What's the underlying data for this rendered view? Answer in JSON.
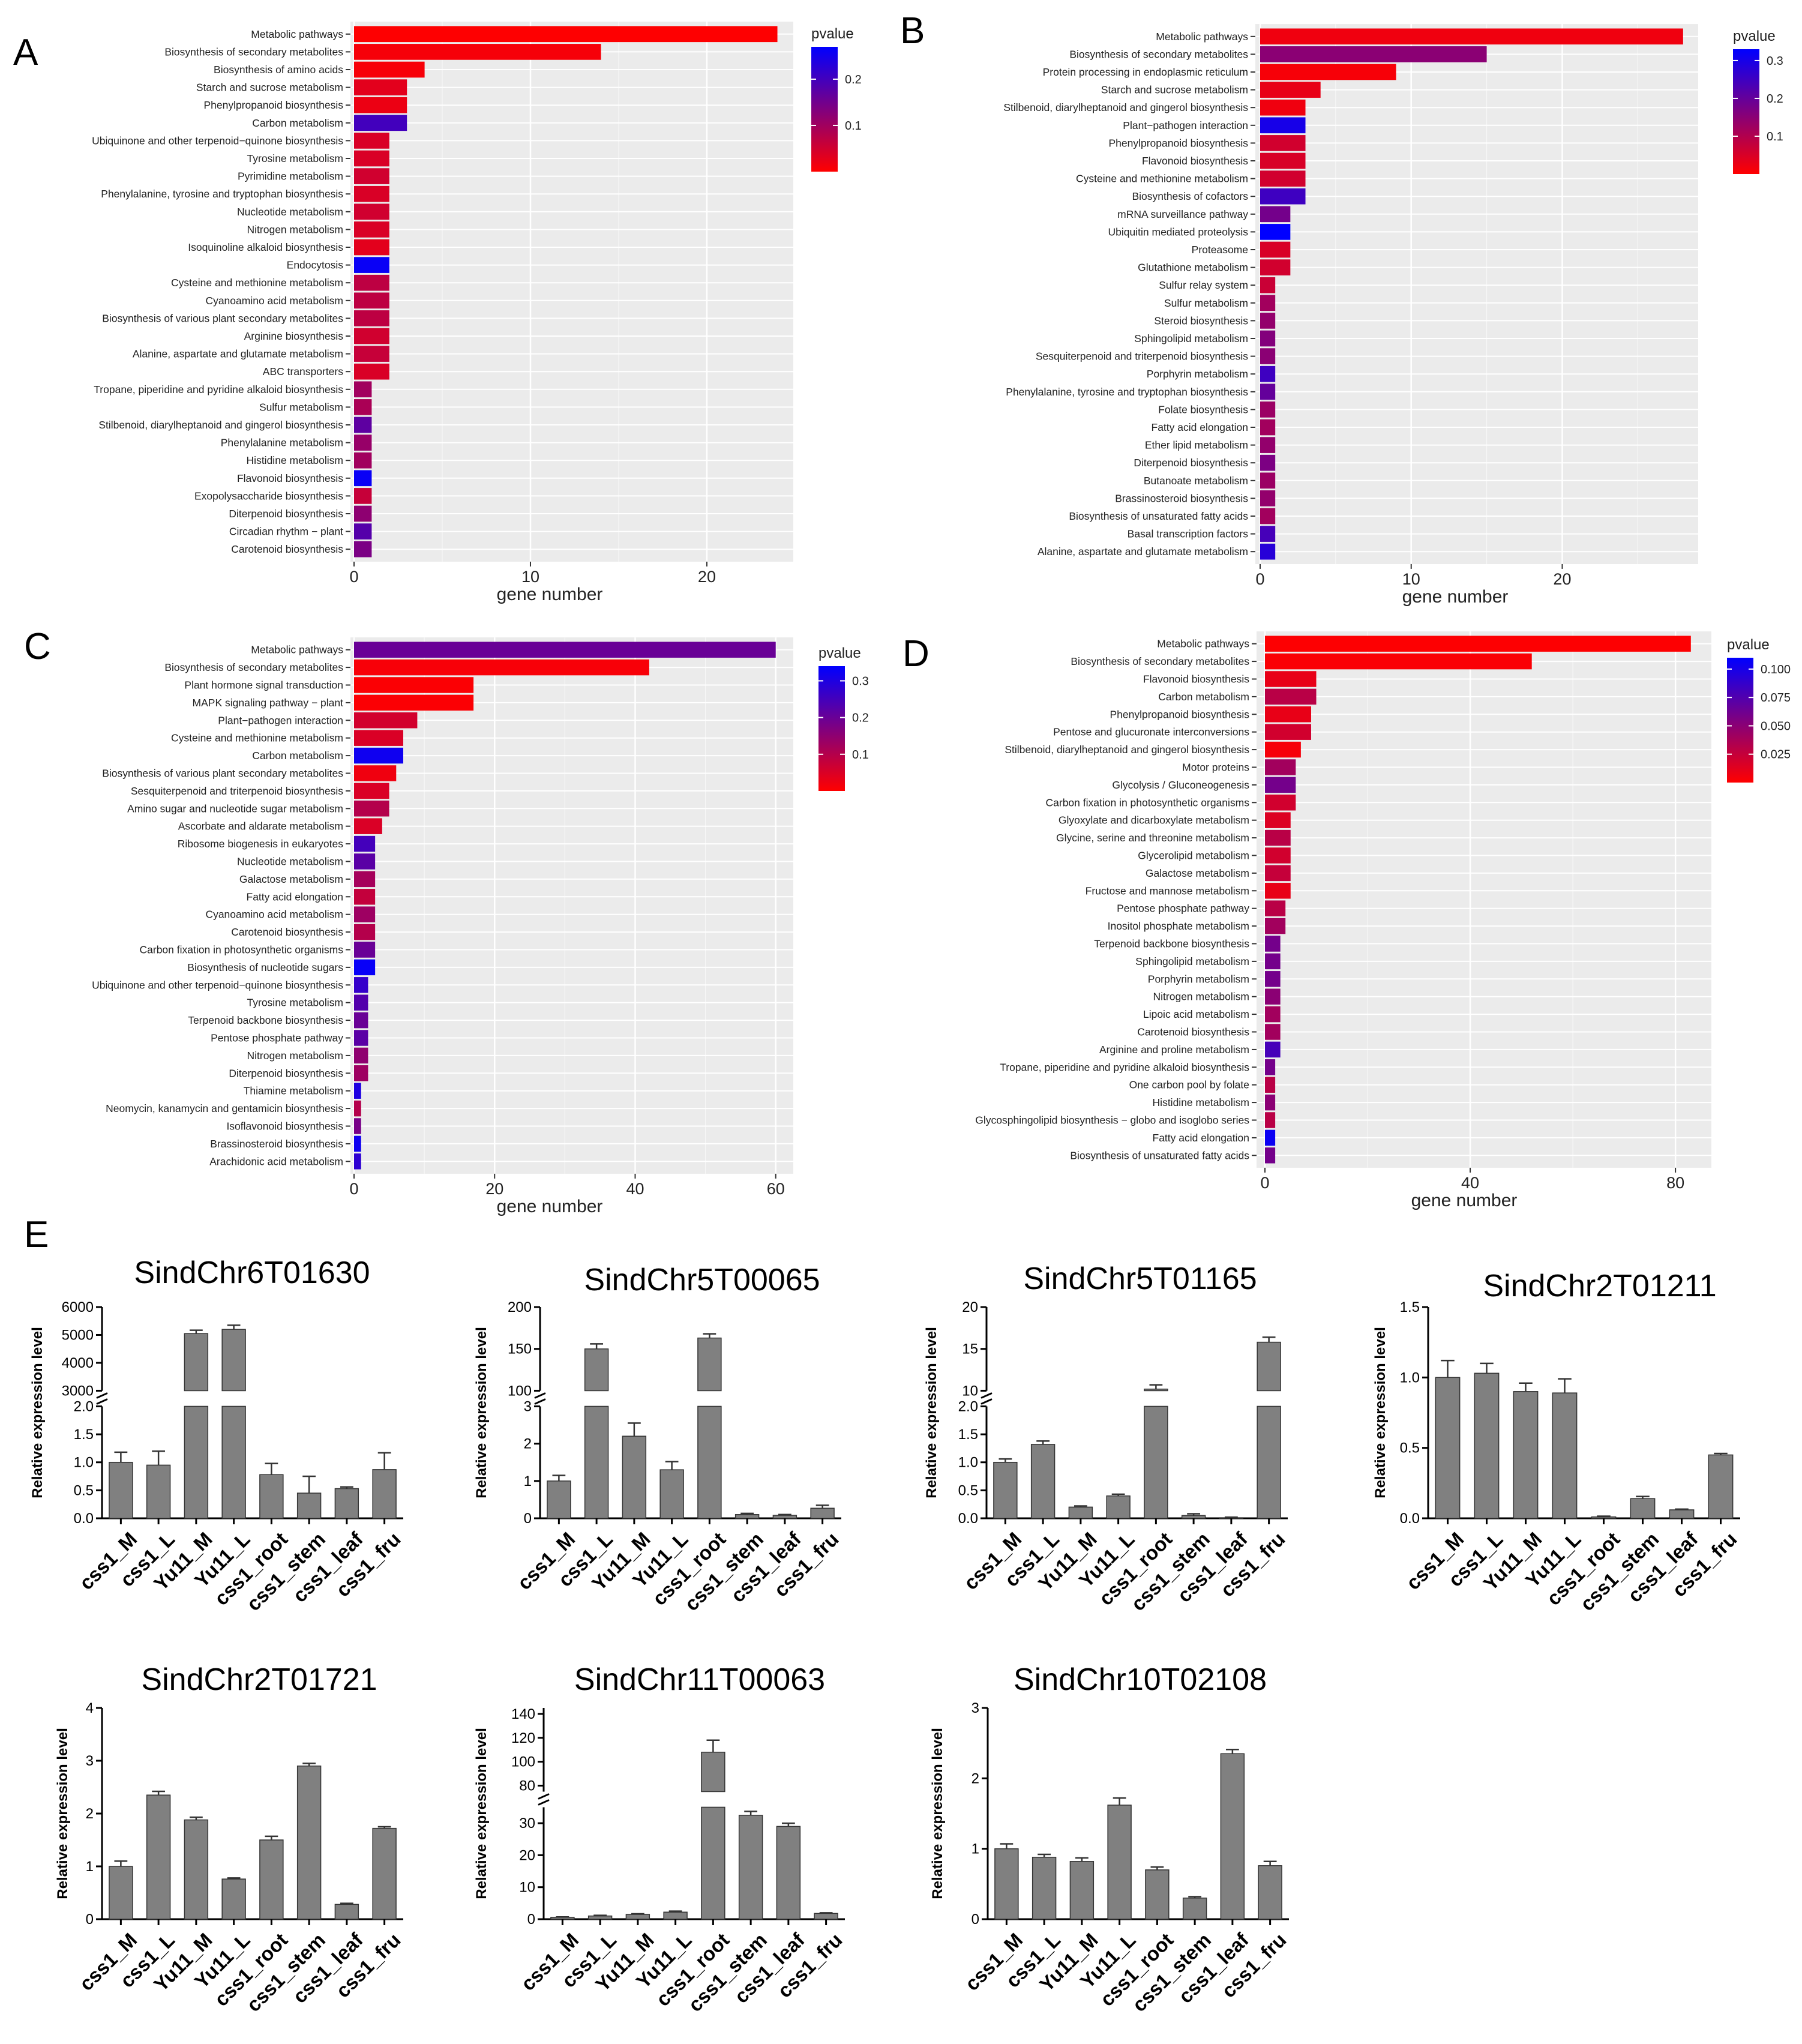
{
  "figure": {
    "panel_letters": [
      "A",
      "B",
      "C",
      "D",
      "E"
    ]
  },
  "colors": {
    "low_pvalue": "#ff0000",
    "high_pvalue": "#0000ff",
    "panel_background": "#ebebeb",
    "qpcr_bar": "#808080"
  },
  "chart_data": [
    {
      "panel": "A",
      "type": "bar",
      "orientation": "horizontal",
      "xlabel": "gene number",
      "xticks": [
        0,
        10,
        20
      ],
      "xlim": [
        0,
        24.9
      ],
      "legend": {
        "title": "pvalue",
        "ticks": [
          0.2,
          0.1
        ],
        "range": [
          0.0,
          0.27
        ],
        "placement": "top-right"
      },
      "categories": [
        "Metabolic pathways",
        "Biosynthesis of secondary metabolites",
        "Biosynthesis of amino acids",
        "Starch and sucrose metabolism",
        "Phenylpropanoid biosynthesis",
        "Carbon metabolism",
        "Ubiquinone and other terpenoid−quinone biosynthesis",
        "Tyrosine metabolism",
        "Pyrimidine metabolism",
        "Phenylalanine, tyrosine and tryptophan biosynthesis",
        "Nucleotide metabolism",
        "Nitrogen metabolism",
        "Isoquinoline alkaloid biosynthesis",
        "Endocytosis",
        "Cysteine and methionine metabolism",
        "Cyanoamino acid metabolism",
        "Biosynthesis of various plant secondary metabolites",
        "Arginine biosynthesis",
        "Alanine, aspartate and glutamate metabolism",
        "ABC transporters",
        "Tropane, piperidine and pyridine alkaloid biosynthesis",
        "Sulfur metabolism",
        "Stilbenoid, diarylheptanoid and gingerol biosynthesis",
        "Phenylalanine metabolism",
        "Histidine metabolism",
        "Flavonoid biosynthesis",
        "Exopolysaccharide biosynthesis",
        "Diterpenoid biosynthesis",
        "Circadian rhythm − plant",
        "Carotenoid biosynthesis"
      ],
      "values": [
        24,
        14,
        4,
        3,
        3,
        3,
        2,
        2,
        2,
        2,
        2,
        2,
        2,
        2,
        2,
        2,
        2,
        2,
        2,
        2,
        1,
        1,
        1,
        1,
        1,
        1,
        1,
        1,
        1,
        1
      ],
      "pvalues": [
        0.001,
        0.01,
        0.008,
        0.03,
        0.02,
        0.2,
        0.04,
        0.04,
        0.05,
        0.04,
        0.05,
        0.04,
        0.03,
        0.26,
        0.07,
        0.07,
        0.07,
        0.05,
        0.06,
        0.04,
        0.1,
        0.09,
        0.17,
        0.11,
        0.1,
        0.26,
        0.06,
        0.12,
        0.18,
        0.14
      ]
    },
    {
      "panel": "B",
      "type": "bar",
      "orientation": "horizontal",
      "xlabel": "gene number",
      "xticks": [
        0,
        10,
        20
      ],
      "xlim": [
        0,
        29
      ],
      "legend": {
        "title": "pvalue",
        "ticks": [
          0.3,
          0.2,
          0.1
        ],
        "range": [
          0.0,
          0.33
        ],
        "placement": "top-right"
      },
      "categories": [
        "Metabolic pathways",
        "Biosynthesis of secondary metabolites",
        "Protein processing in endoplasmic reticulum",
        "Starch and sucrose metabolism",
        "Stilbenoid, diarylheptanoid and gingerol biosynthesis",
        "Plant−pathogen interaction",
        "Phenylpropanoid biosynthesis",
        "Flavonoid biosynthesis",
        "Cysteine and methionine metabolism",
        "Biosynthesis of cofactors",
        "mRNA surveillance pathway",
        "Ubiquitin mediated proteolysis",
        "Proteasome",
        "Glutathione metabolism",
        "Sulfur relay system",
        "Sulfur metabolism",
        "Steroid biosynthesis",
        "Sphingolipid metabolism",
        "Sesquiterpenoid and triterpenoid biosynthesis",
        "Porphyrin metabolism",
        "Phenylalanine, tyrosine and tryptophan biosynthesis",
        "Folate biosynthesis",
        "Fatty acid elongation",
        "Ether lipid metabolism",
        "Diterpenoid biosynthesis",
        "Butanoate metabolism",
        "Brassinosteroid biosynthesis",
        "Biosynthesis of unsaturated fatty acids",
        "Basal transcription factors",
        "Alanine, aspartate and glutamate metabolism"
      ],
      "values": [
        28,
        15,
        9,
        4,
        3,
        3,
        3,
        3,
        3,
        3,
        2,
        2,
        2,
        2,
        1,
        1,
        1,
        1,
        1,
        1,
        1,
        1,
        1,
        1,
        1,
        1,
        1,
        1,
        1,
        1
      ],
      "pvalues": [
        0.02,
        0.15,
        0.01,
        0.03,
        0.02,
        0.3,
        0.06,
        0.05,
        0.06,
        0.25,
        0.18,
        0.33,
        0.05,
        0.06,
        0.07,
        0.12,
        0.14,
        0.16,
        0.15,
        0.25,
        0.2,
        0.13,
        0.12,
        0.14,
        0.17,
        0.13,
        0.14,
        0.12,
        0.24,
        0.28
      ]
    },
    {
      "panel": "C",
      "type": "bar",
      "orientation": "horizontal",
      "xlabel": "gene number",
      "xticks": [
        0,
        20,
        40,
        60
      ],
      "xlim": [
        0,
        62.5
      ],
      "legend": {
        "title": "pvalue",
        "ticks": [
          0.3,
          0.2,
          0.1
        ],
        "range": [
          0.0,
          0.34
        ],
        "placement": "top-right"
      },
      "categories": [
        "Metabolic pathways",
        "Biosynthesis of secondary metabolites",
        "Plant hormone signal transduction",
        "MAPK signaling pathway − plant",
        "Plant−pathogen interaction",
        "Cysteine and methionine metabolism",
        "Carbon metabolism",
        "Biosynthesis of various plant secondary metabolites",
        "Sesquiterpenoid and triterpenoid biosynthesis",
        "Amino sugar and nucleotide sugar metabolism",
        "Ascorbate and aldarate metabolism",
        "Ribosome biogenesis in eukaryotes",
        "Nucleotide metabolism",
        "Galactose metabolism",
        "Fatty acid elongation",
        "Cyanoamino acid metabolism",
        "Carotenoid biosynthesis",
        "Carbon fixation in photosynthetic organisms",
        "Biosynthesis of nucleotide sugars",
        "Ubiquinone and other terpenoid−quinone biosynthesis",
        "Tyrosine metabolism",
        "Terpenoid backbone biosynthesis",
        "Pentose phosphate pathway",
        "Nitrogen metabolism",
        "Diterpenoid biosynthesis",
        "Thiamine metabolism",
        "Neomycin, kanamycin and gentamicin biosynthesis",
        "Isoflavonoid biosynthesis",
        "Brassinosteroid biosynthesis",
        "Arachidonic acid metabolism"
      ],
      "values": [
        60,
        42,
        17,
        17,
        9,
        7,
        7,
        6,
        5,
        5,
        4,
        3,
        3,
        3,
        3,
        3,
        3,
        3,
        3,
        2,
        2,
        2,
        2,
        2,
        2,
        1,
        1,
        1,
        1,
        1
      ],
      "pvalues": [
        0.2,
        0.01,
        0.005,
        0.005,
        0.06,
        0.05,
        0.32,
        0.02,
        0.05,
        0.1,
        0.05,
        0.25,
        0.22,
        0.12,
        0.08,
        0.13,
        0.1,
        0.2,
        0.33,
        0.27,
        0.23,
        0.2,
        0.22,
        0.15,
        0.13,
        0.3,
        0.1,
        0.18,
        0.32,
        0.28
      ]
    },
    {
      "panel": "D",
      "type": "bar",
      "orientation": "horizontal",
      "xlabel": "gene number",
      "xticks": [
        0,
        40,
        80
      ],
      "xlim": [
        0,
        87
      ],
      "legend": {
        "title": "pvalue",
        "ticks": [
          0.1,
          0.075,
          0.05,
          0.025
        ],
        "tick_labels": [
          "0.100",
          "0.075",
          "0.050",
          "0.025"
        ],
        "range": [
          0.0,
          0.11
        ],
        "placement": "top-right"
      },
      "categories": [
        "Metabolic pathways",
        "Biosynthesis of secondary metabolites",
        "Flavonoid biosynthesis",
        "Carbon metabolism",
        "Phenylpropanoid biosynthesis",
        "Pentose and glucuronate interconversions",
        "Stilbenoid, diarylheptanoid and gingerol biosynthesis",
        "Motor proteins",
        "Glycolysis / Gluconeogenesis",
        "Carbon fixation in photosynthetic organisms",
        "Glyoxylate and dicarboxylate metabolism",
        "Glycine, serine and threonine metabolism",
        "Glycerolipid metabolism",
        "Galactose metabolism",
        "Fructose and mannose metabolism",
        "Pentose phosphate pathway",
        "Inositol phosphate metabolism",
        "Terpenoid backbone biosynthesis",
        "Sphingolipid metabolism",
        "Porphyrin metabolism",
        "Nitrogen metabolism",
        "Lipoic acid metabolism",
        "Carotenoid biosynthesis",
        "Arginine and proline metabolism",
        "Tropane, piperidine and pyridine alkaloid biosynthesis",
        "One carbon pool by folate",
        "Histidine metabolism",
        "Glycosphingolipid biosynthesis − globo and isoglobo series",
        "Fatty acid elongation",
        "Biosynthesis of unsaturated fatty acids"
      ],
      "values": [
        83,
        52,
        10,
        10,
        9,
        9,
        7,
        6,
        6,
        6,
        5,
        5,
        5,
        5,
        5,
        4,
        4,
        3,
        3,
        3,
        3,
        3,
        3,
        3,
        2,
        2,
        2,
        2,
        2,
        2
      ],
      "pvalues": [
        0.001,
        0.002,
        0.01,
        0.03,
        0.01,
        0.02,
        0.004,
        0.04,
        0.06,
        0.02,
        0.015,
        0.03,
        0.02,
        0.025,
        0.01,
        0.03,
        0.04,
        0.06,
        0.06,
        0.06,
        0.05,
        0.04,
        0.04,
        0.08,
        0.06,
        0.03,
        0.05,
        0.03,
        0.105,
        0.06
      ]
    },
    {
      "panel": "E1",
      "type": "bar",
      "title": "SindChr6T01630",
      "ylabel": "Relative expression level",
      "categories": [
        "css1_M",
        "css1_L",
        "Yu11_M",
        "Yu11_L",
        "css1_root",
        "css1_stem",
        "css1_leaf",
        "css1_fru"
      ],
      "values": [
        1.0,
        0.95,
        5050,
        5200,
        0.78,
        0.45,
        0.53,
        0.87
      ],
      "errors": [
        0.18,
        0.25,
        120,
        150,
        0.2,
        0.3,
        0.03,
        0.3
      ],
      "axis_break": {
        "lower": [
          0,
          2
        ],
        "upper": [
          3000,
          6000
        ]
      },
      "yticks_lower": [
        0,
        0.5,
        1.0,
        1.5,
        2.0
      ],
      "ytick_labels_lower": [
        "0.0",
        "0.5",
        "1.0",
        "1.5",
        "2.0"
      ],
      "yticks_upper": [
        3000,
        4000,
        5000,
        6000
      ],
      "ytick_labels_upper": [
        "3000",
        "4000",
        "5000",
        "6000"
      ]
    },
    {
      "panel": "E2",
      "type": "bar",
      "title": "SindChr5T00065",
      "ylabel": "Relative expression level",
      "categories": [
        "css1_M",
        "css1_L",
        "Yu11_M",
        "Yu11_L",
        "css1_root",
        "css1_stem",
        "css1_leaf",
        "css1_fru"
      ],
      "values": [
        1.0,
        150,
        2.2,
        1.3,
        163,
        0.1,
        0.08,
        0.27
      ],
      "errors": [
        0.15,
        6,
        0.35,
        0.22,
        5,
        0.03,
        0.02,
        0.08
      ],
      "axis_break": {
        "lower": [
          0,
          3
        ],
        "upper": [
          100,
          200
        ]
      },
      "yticks_lower": [
        0,
        1,
        2,
        3
      ],
      "ytick_labels_lower": [
        "0",
        "1",
        "2",
        "3"
      ],
      "yticks_upper": [
        100,
        150,
        200
      ],
      "ytick_labels_upper": [
        "100",
        "150",
        "200"
      ]
    },
    {
      "panel": "E3",
      "type": "bar",
      "title": "SindChr5T01165",
      "ylabel": "Relative expression level",
      "categories": [
        "css1_M",
        "css1_L",
        "Yu11_M",
        "Yu11_L",
        "css1_root",
        "css1_stem",
        "css1_leaf",
        "css1_fru"
      ],
      "values": [
        1.0,
        1.32,
        0.2,
        0.4,
        10.2,
        0.05,
        0.01,
        15.8
      ],
      "errors": [
        0.06,
        0.06,
        0.02,
        0.03,
        0.5,
        0.03,
        0.01,
        0.6
      ],
      "axis_break": {
        "lower": [
          0,
          2
        ],
        "upper": [
          10,
          20
        ]
      },
      "yticks_lower": [
        0,
        0.5,
        1.0,
        1.5,
        2.0
      ],
      "ytick_labels_lower": [
        "0.0",
        "0.5",
        "1.0",
        "1.5",
        "2.0"
      ],
      "yticks_upper": [
        10,
        15,
        20
      ],
      "ytick_labels_upper": [
        "10",
        "15",
        "20"
      ]
    },
    {
      "panel": "E4",
      "type": "bar",
      "title": "SindChr2T01211",
      "ylabel": "Relative expression level",
      "categories": [
        "css1_M",
        "css1_L",
        "Yu11_M",
        "Yu11_L",
        "css1_root",
        "css1_stem",
        "css1_leaf",
        "css1_fru"
      ],
      "values": [
        1.0,
        1.03,
        0.9,
        0.89,
        0.01,
        0.14,
        0.06,
        0.45
      ],
      "errors": [
        0.12,
        0.07,
        0.06,
        0.1,
        0.005,
        0.015,
        0.005,
        0.01
      ],
      "ylim": [
        0,
        1.5
      ],
      "yticks": [
        0,
        0.5,
        1.0,
        1.5
      ],
      "ytick_labels": [
        "0.0",
        "0.5",
        "1.0",
        "1.5"
      ]
    },
    {
      "panel": "E5",
      "type": "bar",
      "title": "SindChr2T01721",
      "ylabel": "Relative expression level",
      "categories": [
        "css1_M",
        "css1_L",
        "Yu11_M",
        "Yu11_L",
        "css1_root",
        "css1_stem",
        "css1_leaf",
        "css1_fru"
      ],
      "values": [
        1.0,
        2.35,
        1.88,
        0.76,
        1.5,
        2.9,
        0.28,
        1.72
      ],
      "errors": [
        0.1,
        0.07,
        0.05,
        0.02,
        0.07,
        0.05,
        0.02,
        0.03
      ],
      "ylim": [
        0,
        4
      ],
      "yticks": [
        0,
        1,
        2,
        3,
        4
      ],
      "ytick_labels": [
        "0",
        "1",
        "2",
        "3",
        "4"
      ]
    },
    {
      "panel": "E6",
      "type": "bar",
      "title": "SindChr11T00063",
      "ylabel": "Relative expression level",
      "categories": [
        "css1_M",
        "css1_L",
        "Yu11_M",
        "Yu11_L",
        "css1_root",
        "css1_stem",
        "css1_leaf",
        "css1_fru"
      ],
      "values": [
        0.6,
        1.0,
        1.5,
        2.2,
        108,
        32.5,
        29,
        1.8
      ],
      "errors": [
        0.1,
        0.2,
        0.2,
        0.3,
        10,
        1.2,
        1.0,
        0.2
      ],
      "axis_break": {
        "lower": [
          0,
          35
        ],
        "upper": [
          75,
          145
        ]
      },
      "yticks_lower": [
        0,
        10,
        20,
        30
      ],
      "ytick_labels_lower": [
        "0",
        "10",
        "20",
        "30"
      ],
      "yticks_upper": [
        80,
        100,
        120,
        140
      ],
      "ytick_labels_upper": [
        "80",
        "100",
        "120",
        "140"
      ]
    },
    {
      "panel": "E7",
      "type": "bar",
      "title": "SindChr10T02108",
      "ylabel": "Relative expression level",
      "categories": [
        "css1_M",
        "css1_L",
        "Yu11_M",
        "Yu11_L",
        "css1_root",
        "css1_stem",
        "css1_leaf",
        "css1_fru"
      ],
      "values": [
        1.0,
        0.88,
        0.82,
        1.62,
        0.7,
        0.3,
        2.35,
        0.76
      ],
      "errors": [
        0.07,
        0.04,
        0.05,
        0.1,
        0.04,
        0.02,
        0.06,
        0.06
      ],
      "ylim": [
        0,
        3
      ],
      "yticks": [
        0,
        1,
        2,
        3
      ],
      "ytick_labels": [
        "0",
        "1",
        "2",
        "3"
      ]
    }
  ]
}
